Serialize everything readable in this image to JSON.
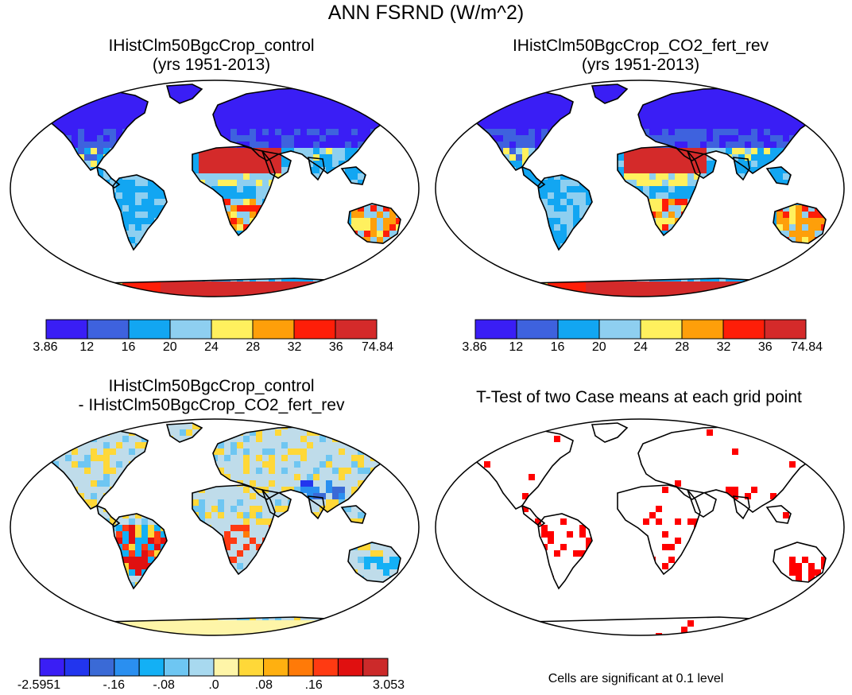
{
  "title": "ANN FSRND (W/m^2)",
  "colors": {
    "abs_scale": [
      "#3a1ef5",
      "#3e62de",
      "#12a6f2",
      "#8ecff0",
      "#fff05e",
      "#fe9f0a",
      "#fe1e08",
      "#d42a2a"
    ],
    "diff_scale": [
      "#3a1ef5",
      "#2235ee",
      "#3a6ad6",
      "#2a8ff0",
      "#13b0f5",
      "#6ec6f2",
      "#a8d9ef",
      "#fef5a8",
      "#ffd838",
      "#ffb010",
      "#ff7a08",
      "#ff3a12",
      "#e01010",
      "#cc2a2a"
    ],
    "ttest": "#ff0000",
    "land_diff": "#bfdcea",
    "land_ttest": "#ffffff"
  },
  "panels": {
    "p1": {
      "title_line1": "IHistClm50BgcCrop_control",
      "title_line2": "(yrs 1951-2013)"
    },
    "p2": {
      "title_line1": "IHistClm50BgcCrop_CO2_fert_rev",
      "title_line2": "(yrs 1951-2013)"
    },
    "p3": {
      "title_line1": "IHistClm50BgcCrop_control",
      "title_line2": "- IHistClm50BgcCrop_CO2_fert_rev"
    },
    "p4": {
      "title_line1": "T-Test of two Case means at each grid point",
      "footnote": "Cells are significant at 0.1 level"
    }
  },
  "colorbars": {
    "abs_labels": [
      "3.86",
      "12",
      "16",
      "20",
      "24",
      "28",
      "32",
      "36",
      "74.84"
    ],
    "diff_labels": [
      "-2.5951",
      "-.16",
      "-.08",
      ".0",
      ".08",
      ".16",
      "3.053"
    ]
  },
  "chart_data": [
    {
      "type": "heatmap",
      "title": "IHistClm50BgcCrop_control",
      "subtitle": "(yrs 1951-2013)",
      "colorbar_levels": [
        3.86,
        12,
        16,
        20,
        24,
        28,
        32,
        36,
        74.84
      ]
    },
    {
      "type": "heatmap",
      "title": "IHistClm50BgcCrop_CO2_fert_rev",
      "subtitle": "(yrs 1951-2013)",
      "colorbar_levels": [
        3.86,
        12,
        16,
        20,
        24,
        28,
        32,
        36,
        74.84
      ]
    },
    {
      "type": "heatmap",
      "title": "IHistClm50BgcCrop_control - IHistClm50BgcCrop_CO2_fert_rev",
      "colorbar_labels": [
        "-2.5951",
        "-.16",
        "-.08",
        ".0",
        ".08",
        ".16",
        "3.053"
      ]
    },
    {
      "type": "heatmap",
      "title": "T-Test of two Case means at each grid point",
      "annotation": "Cells are significant at 0.1 level"
    }
  ]
}
